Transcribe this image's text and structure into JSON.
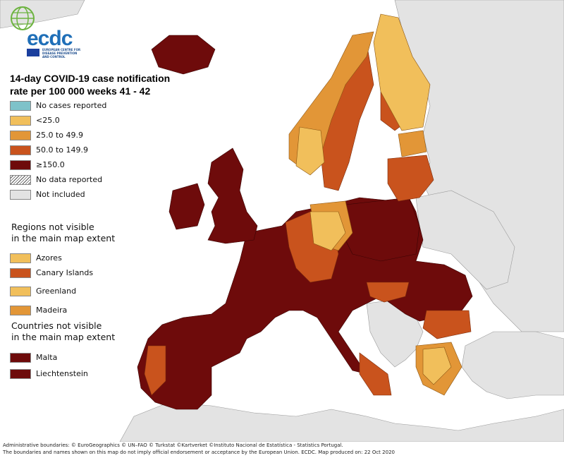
{
  "logo": {
    "text": "ecdc",
    "subtitle": "EUROPEAN CENTRE FOR DISEASE PREVENTION AND CONTROL"
  },
  "title_line1": "14-day COVID-19 case notification",
  "title_line2": "rate per 100 000 weeks 41 - 42",
  "legend": {
    "items": [
      {
        "label": "No cases reported",
        "color": "#7ec2c9"
      },
      {
        "label": "<25.0",
        "color": "#f1bf5b"
      },
      {
        "label": "25.0 to 49.9",
        "color": "#e29637"
      },
      {
        "label": "50.0 to 149.9",
        "color": "#c9531d"
      },
      {
        "label": "≥150.0",
        "color": "#6e0b0b"
      },
      {
        "label": "No data reported",
        "color": "hatch"
      },
      {
        "label": "Not included",
        "color": "#e3e3e3"
      }
    ]
  },
  "regions_title_line1": "Regions not visible",
  "regions_title_line2": "in the main map extent",
  "regions": [
    {
      "label": "Azores",
      "color": "#f1bf5b"
    },
    {
      "label": "Canary Islands",
      "color": "#c9531d"
    },
    {
      "label": "Greenland",
      "color": "#f1bf5b"
    },
    {
      "label": "Madeira",
      "color": "#e29637"
    }
  ],
  "countries_title_line1": "Countries not visible",
  "countries_title_line2": "in the main map extent",
  "countries": [
    {
      "label": "Malta",
      "color": "#6e0b0b"
    },
    {
      "label": "Liechtenstein",
      "color": "#6e0b0b"
    }
  ],
  "footer_line1": "Administrative boundaries: © EuroGeographics © UN–FAO © Turkstat ©Kartverket ©Instituto Nacional de Estatística - Statistics Portugal.",
  "footer_line2": "The boundaries and names shown on this map do not imply official endorsement or acceptance by the European Union. ECDC. Map produced on:  22 Oct 2020"
}
